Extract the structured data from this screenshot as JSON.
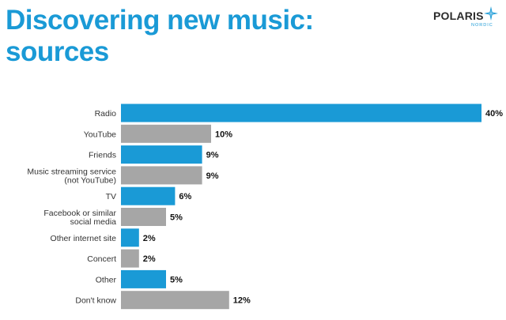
{
  "header": {
    "title_line1": "Discovering new music:",
    "title_line2": "sources"
  },
  "logo": {
    "name": "POLARIS",
    "sub": "NORDIC"
  },
  "colors": {
    "blue": "#1a9ad6",
    "gray": "#a6a6a6",
    "title": "#1a9ad6"
  },
  "chart_data": {
    "type": "bar",
    "orientation": "horizontal",
    "title": "Discovering new music: sources",
    "categories": [
      [
        "Radio"
      ],
      [
        "YouTube"
      ],
      [
        "Friends"
      ],
      [
        "Music streaming service",
        "(not YouTube)"
      ],
      [
        "TV"
      ],
      [
        "Facebook or similar",
        "social media"
      ],
      [
        "Other internet site"
      ],
      [
        "Concert"
      ],
      [
        "Other"
      ],
      [
        "Don't know"
      ]
    ],
    "values": [
      40,
      10,
      9,
      9,
      6,
      5,
      2,
      2,
      5,
      12
    ],
    "value_labels": [
      "40%",
      "10%",
      "9%",
      "9%",
      "6%",
      "5%",
      "2%",
      "2%",
      "5%",
      "12%"
    ],
    "bar_colors": [
      "#1a9ad6",
      "#a6a6a6",
      "#1a9ad6",
      "#a6a6a6",
      "#1a9ad6",
      "#a6a6a6",
      "#1a9ad6",
      "#a6a6a6",
      "#1a9ad6",
      "#a6a6a6"
    ],
    "unit": "%",
    "xlim": [
      0,
      40
    ],
    "grid": false,
    "legend": "none"
  }
}
